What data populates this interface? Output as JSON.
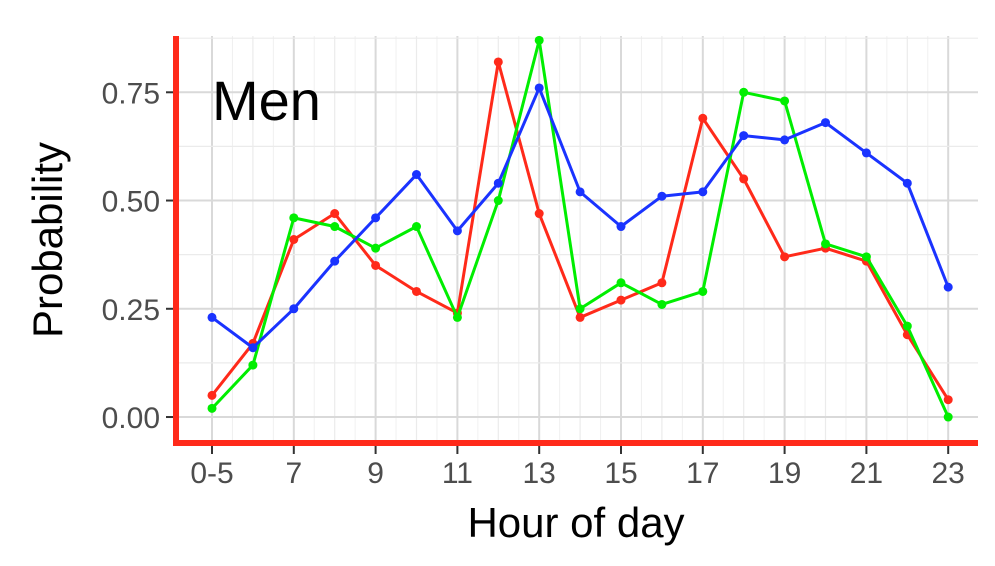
{
  "chart_data": {
    "type": "line",
    "panel_label": "Men",
    "xlabel": "Hour of day",
    "ylabel": "Probability",
    "x": [
      "0-5",
      "6",
      "7",
      "8",
      "9",
      "10",
      "11",
      "12",
      "13",
      "14",
      "15",
      "16",
      "17",
      "18",
      "19",
      "20",
      "21",
      "22",
      "23"
    ],
    "x_tick_labels": [
      "0-5",
      "7",
      "9",
      "11",
      "13",
      "15",
      "17",
      "19",
      "21",
      "23"
    ],
    "y_ticks": [
      0.0,
      0.25,
      0.5,
      0.75
    ],
    "y_tick_labels": [
      "0.00",
      "0.25",
      "0.50",
      "0.75"
    ],
    "ylim": [
      -0.06,
      0.88
    ],
    "grid": true,
    "series": [
      {
        "color": "#ff2a1a",
        "values": [
          0.05,
          0.17,
          0.41,
          0.47,
          0.35,
          0.29,
          0.24,
          0.82,
          0.47,
          0.23,
          0.27,
          0.31,
          0.69,
          0.55,
          0.37,
          0.39,
          0.36,
          0.19,
          0.04
        ]
      },
      {
        "color": "#00ee00",
        "values": [
          0.02,
          0.12,
          0.46,
          0.44,
          0.39,
          0.44,
          0.23,
          0.5,
          0.87,
          0.25,
          0.31,
          0.26,
          0.29,
          0.75,
          0.73,
          0.4,
          0.37,
          0.21,
          0.0
        ]
      },
      {
        "color": "#1a33ff",
        "values": [
          0.23,
          0.16,
          0.25,
          0.36,
          0.46,
          0.56,
          0.43,
          0.54,
          0.76,
          0.52,
          0.44,
          0.51,
          0.52,
          0.65,
          0.64,
          0.68,
          0.61,
          0.54,
          0.3
        ]
      }
    ],
    "axis_color": "#ff2a1a"
  }
}
